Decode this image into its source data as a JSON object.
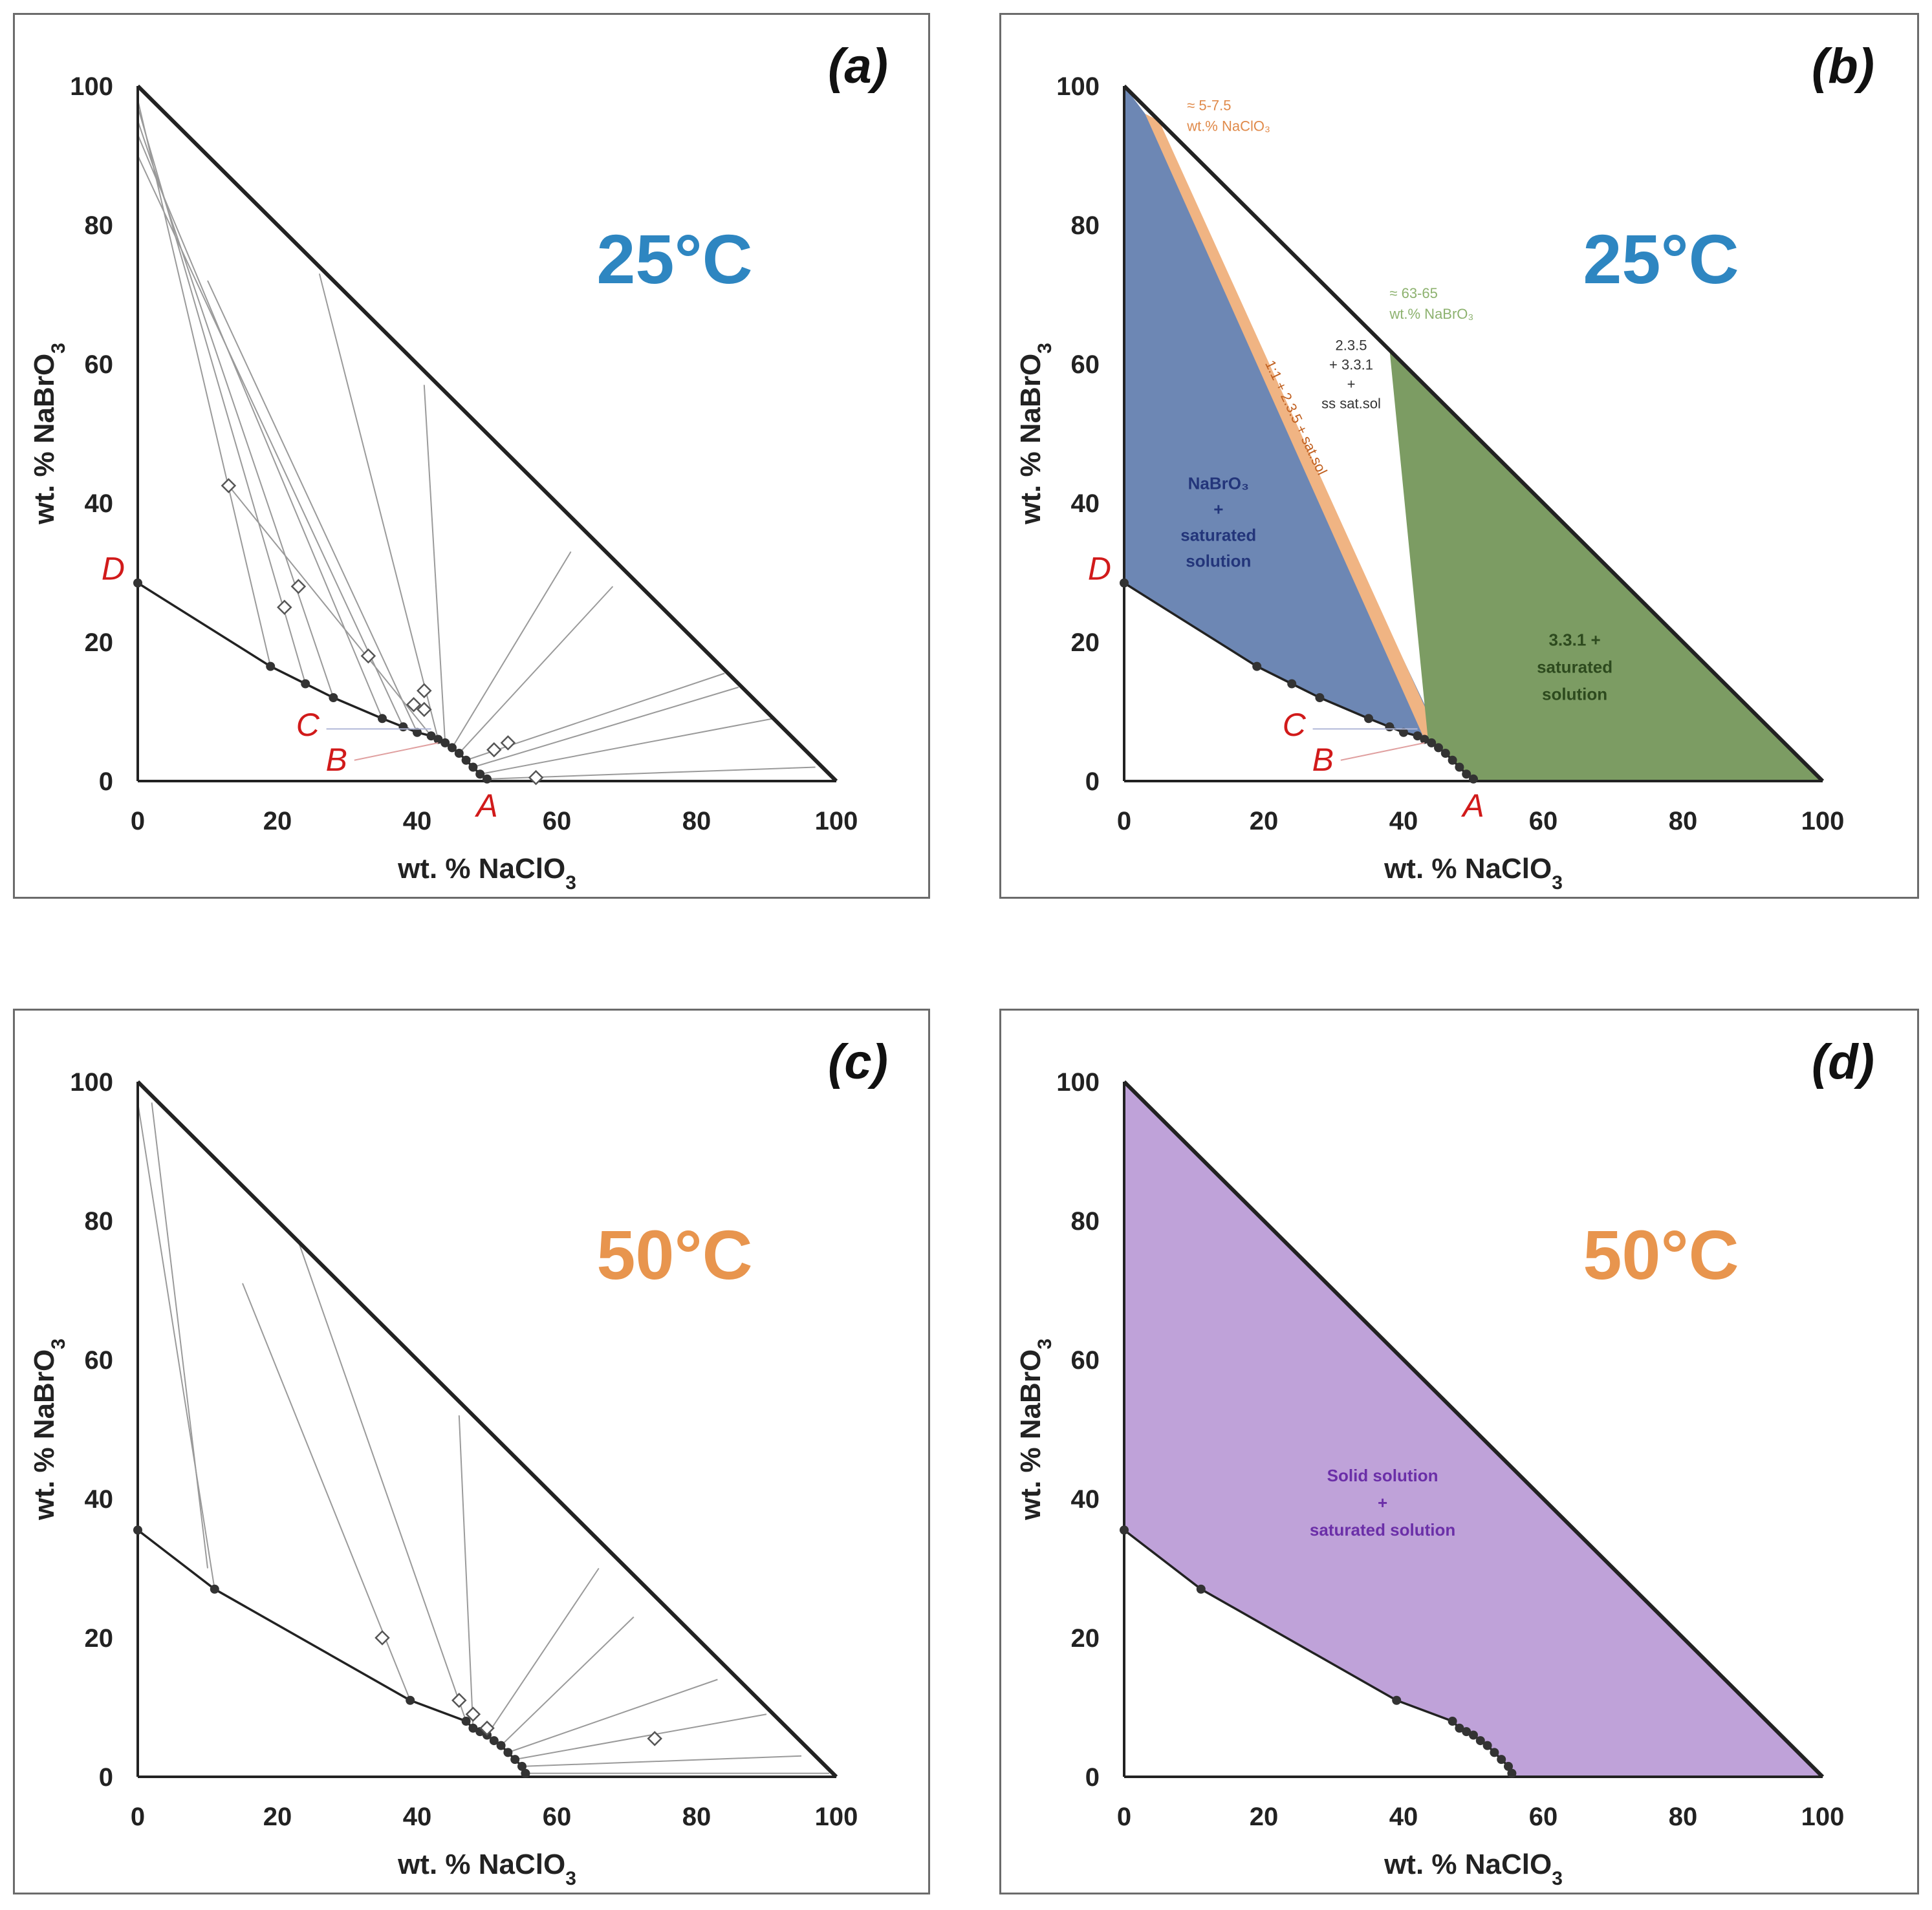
{
  "chart_data": [
    {
      "type": "scatter",
      "panel_label": "(a)",
      "temperature": "25°C",
      "temperature_color": "#2e86c1",
      "xlabel": "wt. % NaClO",
      "xlabel_sub": "3",
      "ylabel": "wt. % NaBrO",
      "ylabel_sub": "3",
      "xlim": [
        0,
        100
      ],
      "ylim": [
        0,
        100
      ],
      "xticks": [
        "0",
        "20",
        "40",
        "60",
        "80",
        "100"
      ],
      "yticks": [
        "0",
        "20",
        "40",
        "60",
        "80",
        "100"
      ],
      "point_labels": [
        {
          "text": "D",
          "x": 0,
          "y": 28.5
        },
        {
          "text": "C",
          "x": 42.5,
          "y": 7
        },
        {
          "text": "B",
          "x": 43,
          "y": 5.5
        },
        {
          "text": "A",
          "x": 50,
          "y": 0
        }
      ],
      "solubility_curve": [
        [
          0,
          28.5
        ],
        [
          19,
          16.5
        ],
        [
          24,
          14
        ],
        [
          28,
          12
        ],
        [
          35,
          9
        ],
        [
          38,
          7.8
        ],
        [
          40,
          7
        ],
        [
          42,
          6.5
        ],
        [
          44,
          5.5
        ],
        [
          46,
          4
        ],
        [
          47.5,
          2.5
        ],
        [
          48.5,
          1.5
        ],
        [
          50,
          0.5
        ],
        [
          50,
          0
        ]
      ],
      "curve_points": [
        [
          0,
          28.5
        ],
        [
          19,
          16.5
        ],
        [
          24,
          14
        ],
        [
          28,
          12
        ],
        [
          35,
          9
        ],
        [
          38,
          7.8
        ],
        [
          40,
          7
        ],
        [
          42,
          6.5
        ],
        [
          43,
          6
        ],
        [
          44,
          5.5
        ],
        [
          45,
          4.8
        ],
        [
          46,
          4
        ],
        [
          47,
          3
        ],
        [
          48,
          2
        ],
        [
          49,
          1
        ],
        [
          50,
          0.3
        ]
      ],
      "wet_residues": [
        [
          13,
          42.5
        ],
        [
          21,
          25
        ],
        [
          23,
          28
        ],
        [
          33,
          18
        ],
        [
          41,
          13
        ],
        [
          39.5,
          11
        ],
        [
          41,
          10.3
        ],
        [
          51,
          4.5
        ],
        [
          53,
          5.5
        ],
        [
          57,
          0.5
        ]
      ],
      "tie_lines": [
        {
          "from": [
            0,
            98
          ],
          "to": [
            19,
            16.5
          ]
        },
        {
          "from": [
            0,
            97
          ],
          "to": [
            24,
            14
          ]
        },
        {
          "from": [
            0,
            95
          ],
          "to": [
            28,
            12
          ]
        },
        {
          "from": [
            0,
            93
          ],
          "to": [
            35,
            9
          ]
        },
        {
          "from": [
            0,
            90
          ],
          "to": [
            38,
            7.8
          ]
        },
        {
          "from": [
            10,
            72
          ],
          "to": [
            40,
            7
          ]
        },
        {
          "from": [
            13,
            42.5
          ],
          "to": [
            42,
            6.5
          ]
        },
        {
          "from": [
            26,
            73
          ],
          "to": [
            43,
            6
          ]
        },
        {
          "from": [
            41,
            57
          ],
          "to": [
            44,
            5.5
          ]
        },
        {
          "from": [
            62,
            33
          ],
          "to": [
            45,
            4.8
          ]
        },
        {
          "from": [
            68,
            28
          ],
          "to": [
            46,
            4
          ]
        },
        {
          "from": [
            84,
            15.5
          ],
          "to": [
            47,
            3
          ]
        },
        {
          "from": [
            86,
            13.5
          ],
          "to": [
            48,
            2
          ]
        },
        {
          "from": [
            91,
            9
          ],
          "to": [
            49,
            1
          ]
        },
        {
          "from": [
            97,
            2
          ],
          "to": [
            50,
            0.3
          ]
        }
      ]
    },
    {
      "type": "area",
      "panel_label": "(b)",
      "temperature": "25°C",
      "temperature_color": "#2e86c1",
      "xlabel": "wt. % NaClO",
      "xlabel_sub": "3",
      "ylabel": "wt. % NaBrO",
      "ylabel_sub": "3",
      "xlim": [
        0,
        100
      ],
      "ylim": [
        0,
        100
      ],
      "xticks": [
        "0",
        "20",
        "40",
        "60",
        "80",
        "100"
      ],
      "yticks": [
        "0",
        "20",
        "40",
        "60",
        "80",
        "100"
      ],
      "point_labels": [
        {
          "text": "D",
          "x": 0,
          "y": 28.5
        },
        {
          "text": "C",
          "x": 42.5,
          "y": 7
        },
        {
          "text": "B",
          "x": 43,
          "y": 5.5
        },
        {
          "text": "A",
          "x": 50,
          "y": 0
        }
      ],
      "curve_points": [
        [
          0,
          28.5
        ],
        [
          19,
          16.5
        ],
        [
          24,
          14
        ],
        [
          28,
          12
        ],
        [
          35,
          9
        ],
        [
          38,
          7.8
        ],
        [
          40,
          7
        ],
        [
          42,
          6.5
        ],
        [
          43,
          6
        ],
        [
          44,
          5.5
        ],
        [
          45,
          4.8
        ],
        [
          46,
          4
        ],
        [
          47,
          3
        ],
        [
          48,
          2
        ],
        [
          49,
          1
        ],
        [
          50,
          0.3
        ]
      ],
      "regions": [
        {
          "name": "nabro3-region",
          "color": "#6d87b4",
          "polygon": [
            [
              0,
              100
            ],
            [
              0,
              28.5
            ],
            [
              19,
              16.5
            ],
            [
              28,
              12
            ],
            [
              38,
              7.8
            ],
            [
              43,
              6
            ],
            [
              45,
              6.8
            ],
            [
              3,
              96
            ]
          ]
        },
        {
          "name": "orange-band",
          "color": "#f0b483",
          "polygon": [
            [
              3,
              96
            ],
            [
              5,
              95
            ],
            [
              44.8,
              6.8
            ],
            [
              43,
              6
            ]
          ]
        },
        {
          "name": "solid-solution-region",
          "color": "#7c9c63",
          "polygon": [
            [
              38,
              62
            ],
            [
              100,
              0
            ],
            [
              50,
              0
            ],
            [
              49,
              1
            ],
            [
              47,
              3
            ],
            [
              45,
              4.8
            ],
            [
              43.5,
              6
            ]
          ]
        }
      ],
      "annotations": {
        "orange_note": [
          "≈ 5-7.5",
          "wt.% NaClO₃"
        ],
        "orange_note_color": "#e08a4a",
        "green_note": [
          "≈ 63-65",
          "wt.% NaBrO₃"
        ],
        "green_note_color": "#8db26f",
        "white_region": [
          "2.3.5",
          "+ 3.3.1",
          "+",
          "ss sat.sol"
        ],
        "band_text": "1:1 + 2.3.5 + sat.sol",
        "blue_region": [
          "NaBrO₃",
          "+",
          "saturated",
          "solution"
        ],
        "blue_region_color": "#23357a",
        "green_region": [
          "3.3.1 +",
          "saturated",
          "solution"
        ],
        "green_region_color": "#2d4a1e"
      }
    },
    {
      "type": "scatter",
      "panel_label": "(c)",
      "temperature": "50°C",
      "temperature_color": "#e8954e",
      "xlabel": "wt. % NaClO",
      "xlabel_sub": "3",
      "ylabel": "wt. % NaBrO",
      "ylabel_sub": "3",
      "xlim": [
        0,
        100
      ],
      "ylim": [
        0,
        100
      ],
      "xticks": [
        "0",
        "20",
        "40",
        "60",
        "80",
        "100"
      ],
      "yticks": [
        "0",
        "20",
        "40",
        "60",
        "80",
        "100"
      ],
      "curve_points": [
        [
          0,
          35.5
        ],
        [
          11,
          27
        ],
        [
          39,
          11
        ],
        [
          47,
          8
        ],
        [
          48,
          7
        ],
        [
          49,
          6.5
        ],
        [
          50,
          6
        ],
        [
          51,
          5.2
        ],
        [
          52,
          4.5
        ],
        [
          53,
          3.5
        ],
        [
          54,
          2.5
        ],
        [
          55,
          1.5
        ],
        [
          55.5,
          0.5
        ]
      ],
      "wet_residues": [
        [
          35,
          20
        ],
        [
          46,
          11
        ],
        [
          48,
          9
        ],
        [
          50,
          7
        ],
        [
          74,
          5.5
        ]
      ],
      "tie_lines": [
        {
          "from": [
            0,
            97
          ],
          "to": [
            11,
            27
          ]
        },
        {
          "from": [
            2,
            97
          ],
          "to": [
            10,
            30
          ]
        },
        {
          "from": [
            15,
            71
          ],
          "to": [
            39,
            11
          ]
        },
        {
          "from": [
            23,
            77
          ],
          "to": [
            47,
            8
          ]
        },
        {
          "from": [
            46,
            52
          ],
          "to": [
            48,
            7
          ]
        },
        {
          "from": [
            66,
            30
          ],
          "to": [
            50,
            6
          ]
        },
        {
          "from": [
            71,
            23
          ],
          "to": [
            52,
            4.5
          ]
        },
        {
          "from": [
            83,
            14
          ],
          "to": [
            53,
            3.5
          ]
        },
        {
          "from": [
            90,
            9
          ],
          "to": [
            54,
            2.5
          ]
        },
        {
          "from": [
            95,
            3
          ],
          "to": [
            55,
            1.5
          ]
        },
        {
          "from": [
            99,
            0.5
          ],
          "to": [
            55.5,
            0.5
          ]
        }
      ]
    },
    {
      "type": "area",
      "panel_label": "(d)",
      "temperature": "50°C",
      "temperature_color": "#e8954e",
      "xlabel": "wt. % NaClO",
      "xlabel_sub": "3",
      "ylabel": "wt. % NaBrO",
      "ylabel_sub": "3",
      "xlim": [
        0,
        100
      ],
      "ylim": [
        0,
        100
      ],
      "xticks": [
        "0",
        "20",
        "40",
        "60",
        "80",
        "100"
      ],
      "yticks": [
        "0",
        "20",
        "40",
        "60",
        "80",
        "100"
      ],
      "curve_points": [
        [
          0,
          35.5
        ],
        [
          11,
          27
        ],
        [
          39,
          11
        ],
        [
          47,
          8
        ],
        [
          48,
          7
        ],
        [
          49,
          6.5
        ],
        [
          50,
          6
        ],
        [
          51,
          5.2
        ],
        [
          52,
          4.5
        ],
        [
          53,
          3.5
        ],
        [
          54,
          2.5
        ],
        [
          55,
          1.5
        ],
        [
          55.5,
          0.5
        ]
      ],
      "regions": [
        {
          "name": "solid-solution-region",
          "color": "#bfa2d9",
          "polygon": [
            [
              0,
              100
            ],
            [
              100,
              0
            ],
            [
              55.5,
              0
            ],
            [
              55.5,
              0.5
            ],
            [
              54,
              2.5
            ],
            [
              52,
              4.5
            ],
            [
              50,
              6
            ],
            [
              48,
              7
            ],
            [
              47,
              8
            ],
            [
              39,
              11
            ],
            [
              11,
              27
            ],
            [
              0,
              35.5
            ]
          ]
        }
      ],
      "annotations": {
        "purple_region": [
          "Solid solution",
          "+",
          "saturated solution"
        ],
        "purple_region_color": "#6b2fa8"
      }
    }
  ]
}
